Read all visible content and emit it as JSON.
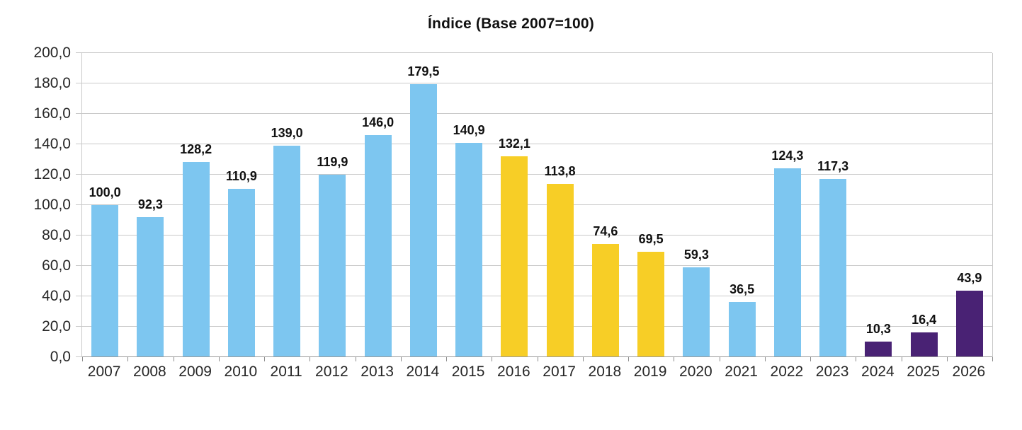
{
  "chart_data": {
    "type": "bar",
    "title": "Índice (Base 2007=100)",
    "categories": [
      "2007",
      "2008",
      "2009",
      "2010",
      "2011",
      "2012",
      "2013",
      "2014",
      "2015",
      "2016",
      "2017",
      "2018",
      "2019",
      "2020",
      "2021",
      "2022",
      "2023",
      "2024",
      "2025",
      "2026"
    ],
    "values": [
      100.0,
      92.3,
      128.2,
      110.9,
      139.0,
      119.9,
      146.0,
      179.5,
      140.9,
      132.1,
      113.8,
      74.6,
      69.5,
      59.3,
      36.5,
      124.3,
      117.3,
      10.3,
      16.4,
      43.9
    ],
    "value_labels": [
      "100,0",
      "92,3",
      "128,2",
      "110,9",
      "139,0",
      "119,9",
      "146,0",
      "179,5",
      "140,9",
      "132,1",
      "113,8",
      "74,6",
      "69,5",
      "59,3",
      "36,5",
      "124,3",
      "117,3",
      "10,3",
      "16,4",
      "43,9"
    ],
    "bar_color_keys": [
      "blue",
      "blue",
      "blue",
      "blue",
      "blue",
      "blue",
      "blue",
      "blue",
      "blue",
      "yellow",
      "yellow",
      "yellow",
      "yellow",
      "blue",
      "blue",
      "blue",
      "blue",
      "purple",
      "purple",
      "purple"
    ],
    "colors": {
      "blue": "#7dc6f0",
      "yellow": "#f7ce26",
      "purple": "#492274",
      "gridline": "#c9c9c9",
      "axis_line": "#9a9a9a",
      "axis_text": "#262626",
      "value_text": "#111111"
    },
    "ylim": [
      0,
      200
    ],
    "ytick_step": 20,
    "yticks": [
      "0,0",
      "20,0",
      "40,0",
      "60,0",
      "80,0",
      "100,0",
      "120,0",
      "140,0",
      "160,0",
      "180,0",
      "200,0"
    ],
    "xlabel": "",
    "ylabel": "",
    "grid": true,
    "legend_position": "none"
  }
}
